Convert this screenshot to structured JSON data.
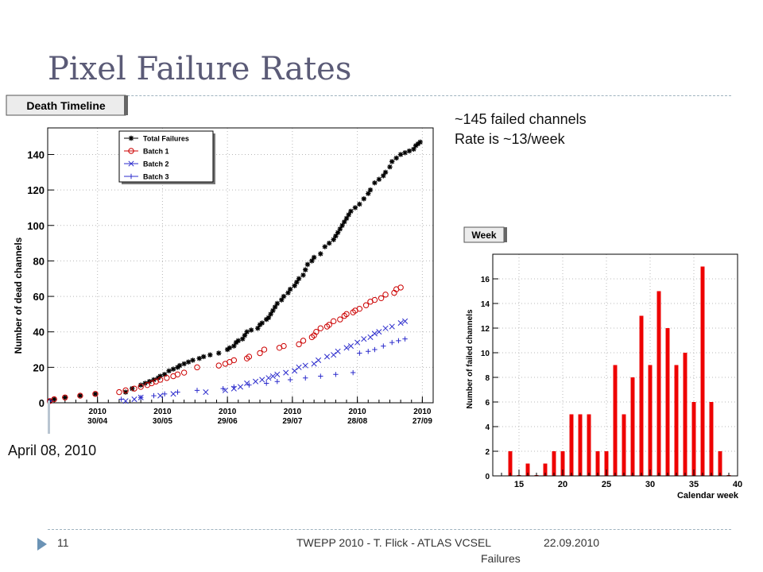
{
  "slide": {
    "title": "Pixel Failure Rates",
    "note_line1": "~145 failed channels",
    "note_line2": "Rate is ~13/week",
    "start_label": "April 08, 2010",
    "slide_number": "11",
    "footer_line1": "TWEPP 2010 - T. Flick - ATLAS VCSEL",
    "footer_line2": "Failures",
    "footer_date": "22.09.2010"
  },
  "chart_data": [
    {
      "type": "scatter",
      "title": "Death Timeline",
      "ylabel": "Number of dead channels",
      "ylim": [
        0,
        155
      ],
      "grid": true,
      "legend_position": "top-left",
      "x_unit": "day of 2010",
      "xlim": [
        97,
        275
      ],
      "x_ticks": [
        {
          "day": 120,
          "line1": "2010",
          "line2": "30/04"
        },
        {
          "day": 150,
          "line1": "2010",
          "line2": "30/05"
        },
        {
          "day": 180,
          "line1": "2010",
          "line2": "29/06"
        },
        {
          "day": 210,
          "line1": "2010",
          "line2": "29/07"
        },
        {
          "day": 240,
          "line1": "2010",
          "line2": "28/08"
        },
        {
          "day": 270,
          "line1": "2010",
          "line2": "27/09"
        }
      ],
      "y_ticks": [
        0,
        20,
        40,
        60,
        80,
        100,
        120,
        140
      ],
      "series": [
        {
          "name": "Total Failures",
          "marker": "star",
          "color": "#000000",
          "x": [
            98,
            100,
            105,
            112,
            119,
            133,
            136,
            140,
            142,
            144,
            146,
            148,
            149,
            151,
            153,
            155,
            157,
            158,
            160,
            162,
            164,
            167,
            169,
            172,
            176,
            180,
            181,
            183,
            184,
            185,
            187,
            188,
            189,
            191,
            194,
            195,
            196,
            198,
            199,
            200,
            201,
            202,
            203,
            205,
            206,
            208,
            209,
            211,
            212,
            213,
            215,
            216,
            217,
            219,
            220,
            223,
            225,
            227,
            229,
            230,
            231,
            232,
            233,
            234,
            235,
            236,
            237,
            239,
            241,
            243,
            245,
            246,
            248,
            250,
            252,
            253,
            255,
            256,
            258,
            260,
            262,
            264,
            266,
            267,
            268,
            269
          ],
          "y": [
            1,
            2,
            3,
            4,
            5,
            6,
            8,
            10,
            11,
            12,
            13,
            14,
            15,
            16,
            18,
            19,
            20,
            21,
            22,
            23,
            24,
            25,
            26,
            27,
            28,
            30,
            31,
            32,
            34,
            35,
            36,
            38,
            40,
            41,
            42,
            44,
            45,
            47,
            48,
            50,
            52,
            54,
            56,
            58,
            60,
            62,
            64,
            66,
            68,
            70,
            72,
            75,
            78,
            80,
            82,
            84,
            88,
            90,
            92,
            94,
            96,
            98,
            100,
            102,
            104,
            106,
            108,
            110,
            112,
            115,
            118,
            120,
            124,
            126,
            128,
            130,
            133,
            136,
            138,
            140,
            141,
            142,
            143,
            145,
            146,
            147
          ]
        },
        {
          "name": "Batch 1",
          "marker": "circle",
          "color": "#cc0000",
          "x": [
            98,
            100,
            105,
            112,
            119,
            130,
            133,
            137,
            140,
            143,
            145,
            147,
            149,
            152,
            155,
            157,
            160,
            166,
            176,
            179,
            181,
            183,
            189,
            190,
            195,
            197,
            204,
            206,
            213,
            215,
            219,
            220,
            221,
            223,
            226,
            227,
            229,
            232,
            234,
            235,
            238,
            239,
            241,
            244,
            246,
            248,
            251,
            253,
            257,
            258,
            260
          ],
          "y": [
            1,
            2,
            3,
            4,
            5,
            6,
            7,
            8,
            9,
            10,
            11,
            12,
            13,
            14,
            15,
            16,
            17,
            20,
            21,
            22,
            23,
            24,
            25,
            26,
            28,
            30,
            31,
            32,
            33,
            35,
            37,
            38,
            40,
            42,
            43,
            44,
            46,
            47,
            49,
            50,
            51,
            52,
            53,
            55,
            57,
            58,
            59,
            61,
            62,
            64,
            65
          ]
        },
        {
          "name": "Batch 2",
          "marker": "x",
          "color": "#2b2bcc",
          "x": [
            133,
            137,
            140,
            149,
            155,
            170,
            179,
            183,
            186,
            189,
            193,
            196,
            199,
            201,
            203,
            207,
            211,
            213,
            216,
            220,
            222,
            226,
            229,
            231,
            235,
            237,
            240,
            243,
            246,
            248,
            250,
            253,
            256,
            260,
            262
          ],
          "y": [
            1,
            2,
            3,
            4,
            5,
            6,
            7,
            8,
            9,
            11,
            12,
            13,
            14,
            15,
            16,
            17,
            18,
            20,
            21,
            22,
            24,
            26,
            27,
            29,
            31,
            32,
            34,
            36,
            37,
            39,
            40,
            42,
            43,
            45,
            46
          ]
        },
        {
          "name": "Batch 3",
          "marker": "plus",
          "color": "#2b2bcc",
          "x": [
            98,
            131,
            140,
            146,
            151,
            157,
            166,
            178,
            183,
            190,
            198,
            203,
            209,
            216,
            223,
            230,
            238,
            241,
            245,
            248,
            252,
            256,
            259,
            262
          ],
          "y": [
            1,
            2,
            3,
            4,
            5,
            6,
            7,
            8,
            9,
            10,
            11,
            12,
            13,
            14,
            15,
            16,
            17,
            28,
            29,
            30,
            32,
            34,
            35,
            36
          ]
        }
      ]
    },
    {
      "type": "bar",
      "title": "Week",
      "xlabel": "Calendar week",
      "ylabel": "Number of failed channels",
      "xlim": [
        12,
        40
      ],
      "ylim": [
        0,
        18
      ],
      "grid": true,
      "x_ticks": [
        15,
        20,
        25,
        30,
        35,
        40
      ],
      "y_ticks": [
        0,
        2,
        4,
        6,
        8,
        10,
        12,
        14,
        16
      ],
      "color": "#ee0000",
      "weeks": [
        14,
        15,
        16,
        17,
        18,
        19,
        20,
        21,
        22,
        23,
        24,
        25,
        26,
        27,
        28,
        29,
        30,
        31,
        32,
        33,
        34,
        35,
        36,
        37,
        38,
        39
      ],
      "values": [
        2,
        0,
        1,
        0,
        1,
        2,
        2,
        5,
        5,
        5,
        2,
        2,
        9,
        5,
        8,
        13,
        9,
        15,
        12,
        9,
        10,
        6,
        17,
        6,
        2,
        0
      ]
    }
  ]
}
